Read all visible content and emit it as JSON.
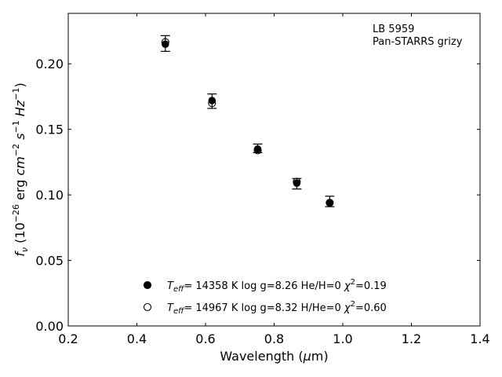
{
  "chart_data": {
    "type": "scatter",
    "title": "",
    "xlabel": "Wavelength (μm)",
    "ylabel": "f_ν (10^-26 erg cm^-2 s^-1 Hz^-1)",
    "xlim": [
      0.2,
      1.4
    ],
    "ylim": [
      0.0,
      0.2385
    ],
    "xticks": [
      0.2,
      0.4,
      0.6,
      0.8,
      1.0,
      1.2,
      1.4
    ],
    "xtick_labels": [
      "0.2",
      "0.4",
      "0.6",
      "0.8",
      "1.0",
      "1.2",
      "1.4"
    ],
    "yticks": [
      0.0,
      0.05,
      0.1,
      0.15,
      0.2
    ],
    "ytick_labels": [
      "0.00",
      "0.05",
      "0.10",
      "0.15",
      "0.20"
    ],
    "grid": false,
    "annotation": [
      "LB 5959",
      "Pan-STARRS grizy"
    ],
    "observed": {
      "marker": "errorbar-cap",
      "points": [
        {
          "x": 0.483,
          "y": 0.2155,
          "err": 0.006
        },
        {
          "x": 0.619,
          "y": 0.1715,
          "err": 0.0055
        },
        {
          "x": 0.752,
          "y": 0.1355,
          "err": 0.0033
        },
        {
          "x": 0.866,
          "y": 0.1085,
          "err": 0.004
        },
        {
          "x": 0.962,
          "y": 0.095,
          "err": 0.004
        }
      ]
    },
    "series": [
      {
        "marker": "filled-circle",
        "legend": {
          "teff": "14358 K",
          "logg": "log g=8.26",
          "comp": "He/H=0",
          "chi2": "0.19"
        },
        "x": [
          0.483,
          0.619,
          0.752,
          0.866,
          0.962
        ],
        "y": [
          0.215,
          0.172,
          0.135,
          0.109,
          0.094
        ]
      },
      {
        "marker": "open-circle",
        "legend": {
          "teff": "14967 K",
          "logg": "log g=8.32",
          "comp": "H/He=0",
          "chi2": "0.60"
        },
        "x": [
          0.483,
          0.619,
          0.752,
          0.866,
          0.962
        ],
        "y": [
          0.2165,
          0.17,
          0.134,
          0.11,
          0.094
        ]
      }
    ]
  }
}
